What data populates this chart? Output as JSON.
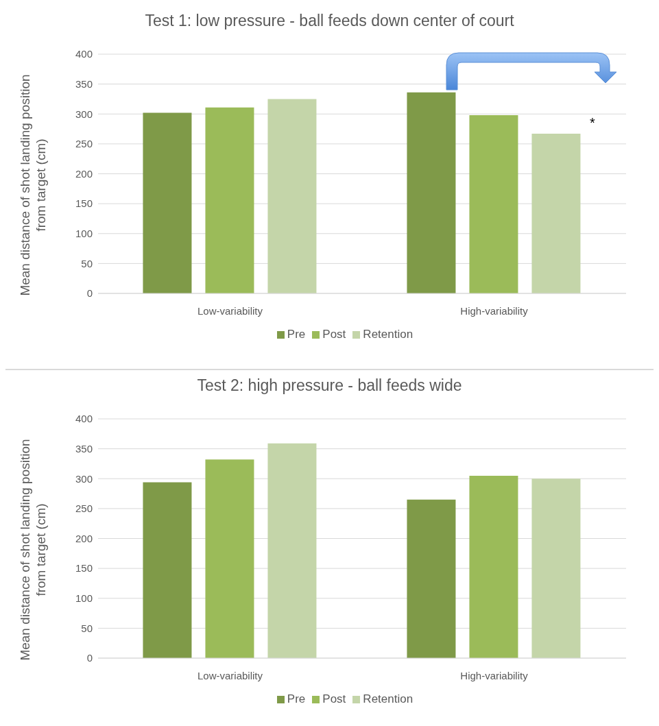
{
  "chart_data": [
    {
      "type": "bar",
      "title": "Test 1: low pressure - ball feeds down center of court",
      "ylabel": "Mean distance of shot landing position from target (cm)",
      "categories": [
        "Low-variability",
        "High-variability"
      ],
      "series": [
        {
          "name": "Pre",
          "color": "#7f9a48",
          "values": [
            302,
            336
          ]
        },
        {
          "name": "Post",
          "color": "#9bbb59",
          "values": [
            311,
            298
          ]
        },
        {
          "name": "Retention",
          "color": "#c4d5a9",
          "values": [
            325,
            267
          ]
        }
      ],
      "ylim": [
        0,
        400
      ],
      "yticks": [
        0,
        50,
        100,
        150,
        200,
        250,
        300,
        350,
        400
      ],
      "grid": "y",
      "legend": "bottom",
      "annotations": [
        "*"
      ]
    },
    {
      "type": "bar",
      "title": "Test 2: high pressure - ball feeds wide",
      "ylabel": "Mean distance of shot landing position from target (cm)",
      "categories": [
        "Low-variability",
        "High-variability"
      ],
      "series": [
        {
          "name": "Pre",
          "color": "#7f9a48",
          "values": [
            294,
            265
          ]
        },
        {
          "name": "Post",
          "color": "#9bbb59",
          "values": [
            332,
            305
          ]
        },
        {
          "name": "Retention",
          "color": "#c4d5a9",
          "values": [
            359,
            300
          ]
        }
      ],
      "ylim": [
        0,
        400
      ],
      "yticks": [
        0,
        50,
        100,
        150,
        200,
        250,
        300,
        350,
        400
      ],
      "grid": "y",
      "legend": "bottom"
    }
  ]
}
